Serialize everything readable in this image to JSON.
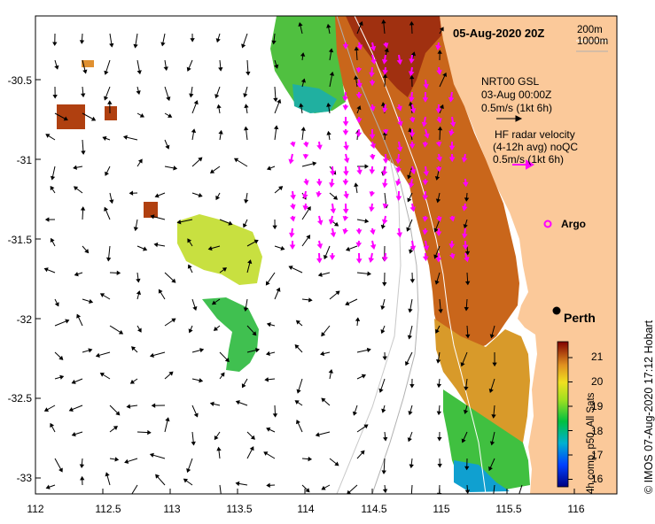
{
  "map": {
    "title": "05-Aug-2020 20Z",
    "legend_nrt": [
      "NRT00 GSL",
      "03-Aug 00:00Z",
      "0.5m/s (1kt 6h)"
    ],
    "legend_hf": [
      "HF radar velocity",
      "(4-12h avg) noQC",
      "0.5m/s (1kt 6h)"
    ],
    "bathy_labels": [
      "200m",
      "1000m"
    ],
    "argo_label": "Argo",
    "city_label": "Perth",
    "credit": "© IMOS 07-Aug-2020 17:12 Hobart",
    "colorbar_label": "4h comp, p50, All Sats",
    "colorbar_ticks": [
      "21",
      "20",
      "19",
      "18",
      "17",
      "16"
    ],
    "lat_ticks": [
      "-30.5",
      "-31",
      "-31.5",
      "-32",
      "-32.5",
      "-33"
    ],
    "lon_ticks": [
      "112",
      "112.5",
      "113",
      "113.5",
      "114",
      "114.5",
      "115",
      "115.5",
      "116"
    ],
    "colors": {
      "land": "#fbc99a",
      "radar_arrows": "#ff00ff",
      "argo": "#ff00ff",
      "warm_sst": "#c05a10",
      "cool_sst": "#00c050"
    }
  }
}
